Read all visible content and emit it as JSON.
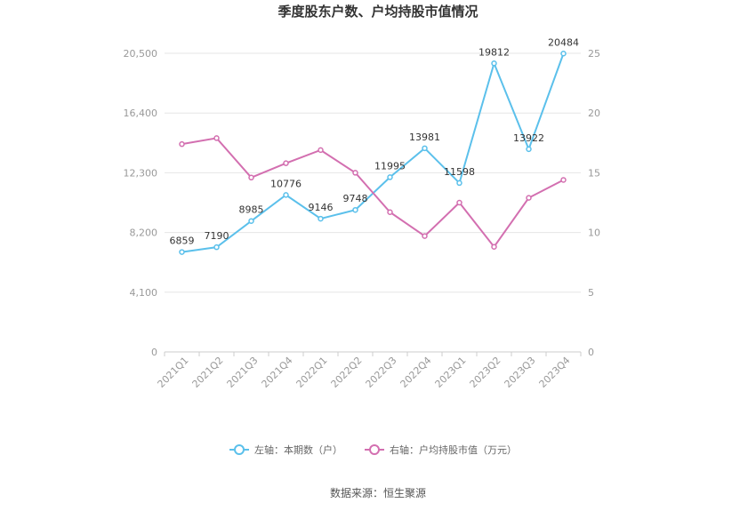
{
  "chart_data": {
    "type": "line",
    "title": "季度股东户数、户均持股市值情况",
    "categories": [
      "2021Q1",
      "2021Q2",
      "2021Q3",
      "2021Q4",
      "2022Q1",
      "2022Q2",
      "2022Q3",
      "2022Q4",
      "2023Q1",
      "2023Q2",
      "2023Q3",
      "2023Q4"
    ],
    "left_axis": {
      "ticks": [
        "0",
        "4,100",
        "8,200",
        "12,300",
        "16,400",
        "20,500"
      ],
      "ylim": [
        0,
        20500
      ]
    },
    "right_axis": {
      "ticks": [
        "0",
        "5",
        "10",
        "15",
        "20",
        "25"
      ],
      "ylim": [
        0,
        25
      ]
    },
    "series": [
      {
        "name": "左轴：本期数（户）",
        "axis": "left",
        "color": "#5bc0eb",
        "values": [
          6859,
          7190,
          8985,
          10776,
          9146,
          9748,
          11995,
          13981,
          11598,
          19812,
          13922,
          20484
        ],
        "labels": [
          "6859",
          "7190",
          "8985",
          "10776",
          "9146",
          "9748",
          "11995",
          "13981",
          "11598",
          "19812",
          "13922",
          "20484"
        ]
      },
      {
        "name": "右轴：户均持股市值（万元）",
        "axis": "right",
        "color": "#d36fb0",
        "values": [
          17.4,
          17.9,
          14.6,
          15.8,
          16.9,
          15.0,
          11.7,
          9.7,
          12.5,
          8.8,
          12.9,
          14.4
        ]
      }
    ],
    "grid": true,
    "legend_position": "bottom"
  },
  "footer": {
    "source": "数据来源：恒生聚源"
  }
}
